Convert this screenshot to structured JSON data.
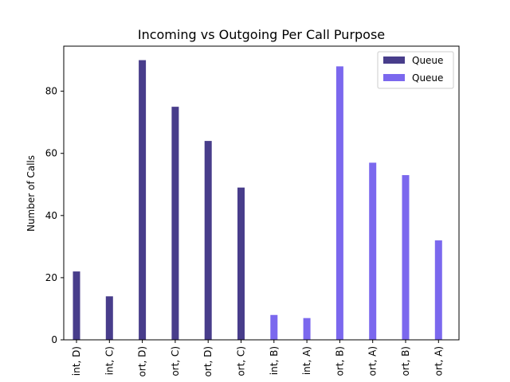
{
  "chart_data": {
    "type": "bar",
    "title": "Incoming vs Outgoing Per Call Purpose",
    "xlabel": "",
    "ylabel": "Number of Calls",
    "ylim": [
      0,
      94.5
    ],
    "yticks": [
      0,
      20,
      40,
      60,
      80
    ],
    "grid": false,
    "legend_position": "top-right",
    "categories": [
      "int, D)",
      "int, C)",
      "ort, D)",
      "ort, C)",
      "ort, D)",
      "ort, C)",
      "int, B)",
      "int, A)",
      "ort, B)",
      "ort, A)",
      "ort, B)",
      "ort, A)"
    ],
    "series": [
      {
        "name": "Queue",
        "color": "#483d8b",
        "values": [
          22,
          14,
          90,
          75,
          64,
          49,
          null,
          null,
          null,
          null,
          null,
          null
        ]
      },
      {
        "name": "Queue",
        "color": "#7b68ee",
        "values": [
          null,
          null,
          null,
          null,
          null,
          null,
          8,
          7,
          88,
          57,
          53,
          32
        ]
      }
    ]
  }
}
